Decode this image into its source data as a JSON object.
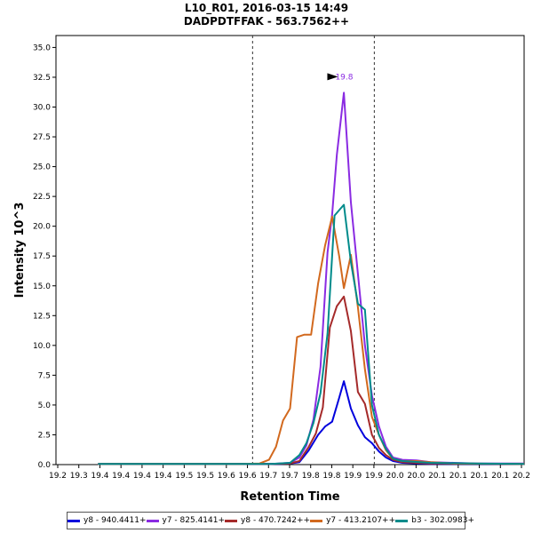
{
  "title": {
    "line1": "L10_R01, 2016-03-15 14:49",
    "line2": "DADPDTFFAK - 563.7562++"
  },
  "chart_data": {
    "type": "line",
    "xlabel": "Retention Time",
    "ylabel": "Intensity 10^3",
    "xlim": [
      19.2,
      20.2
    ],
    "ylim": [
      0,
      36
    ],
    "x_tick_labels": [
      "19.2",
      "19.3",
      "19.4",
      "19.4",
      "19.4",
      "19.4",
      "19.5",
      "19.5",
      "19.6",
      "19.6",
      "19.7",
      "19.7",
      "19.8",
      "19.8",
      "19.9",
      "19.9",
      "20.0",
      "20.0",
      "20.1",
      "20.1",
      "20.1",
      "20.1",
      "20.2"
    ],
    "y_ticks": [
      "0.0",
      "2.5",
      "5.0",
      "7.5",
      "10.0",
      "12.5",
      "15.0",
      "17.5",
      "20.0",
      "22.5",
      "25.0",
      "27.5",
      "30.0",
      "32.5",
      "35.0"
    ],
    "vlines": [
      19.62,
      19.88
    ],
    "peak_annotation": {
      "x": 19.81,
      "y": 31.2,
      "label": "19.8"
    },
    "legend_position": "bottom",
    "grid": false,
    "series": [
      {
        "name": "y8 - 940.4411+",
        "color": "#0000dd",
        "points": [
          [
            19.29,
            0.05
          ],
          [
            19.4,
            0.05
          ],
          [
            19.6,
            0.05
          ],
          [
            19.66,
            0.05
          ],
          [
            19.68,
            0.05
          ],
          [
            19.7,
            0.1
          ],
          [
            19.72,
            0.2
          ],
          [
            19.74,
            1.2
          ],
          [
            19.76,
            2.5
          ],
          [
            19.775,
            3.2
          ],
          [
            19.79,
            3.6
          ],
          [
            19.805,
            5.6
          ],
          [
            19.815,
            7.0
          ],
          [
            19.83,
            4.7
          ],
          [
            19.845,
            3.3
          ],
          [
            19.86,
            2.3
          ],
          [
            19.875,
            1.8
          ],
          [
            19.89,
            1.1
          ],
          [
            19.905,
            0.6
          ],
          [
            19.92,
            0.3
          ],
          [
            19.94,
            0.15
          ],
          [
            20.0,
            0.05
          ],
          [
            20.2,
            0.05
          ]
        ]
      },
      {
        "name": "y7 - 825.4141+",
        "color": "#8a2be2",
        "points": [
          [
            19.29,
            0.05
          ],
          [
            19.6,
            0.05
          ],
          [
            19.66,
            0.05
          ],
          [
            19.7,
            0.15
          ],
          [
            19.72,
            0.6
          ],
          [
            19.735,
            1.6
          ],
          [
            19.75,
            3.8
          ],
          [
            19.765,
            8.2
          ],
          [
            19.78,
            17.8
          ],
          [
            19.79,
            21.0
          ],
          [
            19.8,
            26.0
          ],
          [
            19.815,
            31.2
          ],
          [
            19.83,
            22.0
          ],
          [
            19.845,
            16.0
          ],
          [
            19.86,
            10.0
          ],
          [
            19.875,
            5.8
          ],
          [
            19.89,
            3.2
          ],
          [
            19.905,
            1.5
          ],
          [
            19.92,
            0.6
          ],
          [
            19.94,
            0.4
          ],
          [
            19.97,
            0.35
          ],
          [
            20.0,
            0.2
          ],
          [
            20.05,
            0.15
          ],
          [
            20.1,
            0.1
          ],
          [
            20.2,
            0.1
          ]
        ]
      },
      {
        "name": "y8 - 470.7242++",
        "color": "#a52a2a",
        "points": [
          [
            19.29,
            0.05
          ],
          [
            19.6,
            0.05
          ],
          [
            19.66,
            0.05
          ],
          [
            19.7,
            0.1
          ],
          [
            19.72,
            0.3
          ],
          [
            19.74,
            1.5
          ],
          [
            19.755,
            2.6
          ],
          [
            19.77,
            4.8
          ],
          [
            19.785,
            11.5
          ],
          [
            19.8,
            13.3
          ],
          [
            19.815,
            14.1
          ],
          [
            19.83,
            11.2
          ],
          [
            19.845,
            6.1
          ],
          [
            19.86,
            5.1
          ],
          [
            19.875,
            2.5
          ],
          [
            19.89,
            1.4
          ],
          [
            19.905,
            0.8
          ],
          [
            19.92,
            0.4
          ],
          [
            19.94,
            0.2
          ],
          [
            20.0,
            0.1
          ],
          [
            20.2,
            0.05
          ]
        ]
      },
      {
        "name": "y7 - 413.2107++",
        "color": "#d2691e",
        "points": [
          [
            19.29,
            0.05
          ],
          [
            19.6,
            0.05
          ],
          [
            19.635,
            0.1
          ],
          [
            19.655,
            0.4
          ],
          [
            19.67,
            1.5
          ],
          [
            19.685,
            3.7
          ],
          [
            19.7,
            4.7
          ],
          [
            19.715,
            10.7
          ],
          [
            19.73,
            10.9
          ],
          [
            19.745,
            10.9
          ],
          [
            19.76,
            15.2
          ],
          [
            19.775,
            18.4
          ],
          [
            19.79,
            20.8
          ],
          [
            19.805,
            17.5
          ],
          [
            19.815,
            14.8
          ],
          [
            19.83,
            17.6
          ],
          [
            19.845,
            13.2
          ],
          [
            19.86,
            8.0
          ],
          [
            19.875,
            4.0
          ],
          [
            19.89,
            2.5
          ],
          [
            19.905,
            1.2
          ],
          [
            19.92,
            0.5
          ],
          [
            19.94,
            0.3
          ],
          [
            19.97,
            0.3
          ],
          [
            20.0,
            0.2
          ],
          [
            20.05,
            0.1
          ],
          [
            20.2,
            0.05
          ]
        ]
      },
      {
        "name": "b3 - 302.0983+",
        "color": "#008b8b",
        "points": [
          [
            19.29,
            0.05
          ],
          [
            19.6,
            0.05
          ],
          [
            19.66,
            0.05
          ],
          [
            19.7,
            0.15
          ],
          [
            19.72,
            0.8
          ],
          [
            19.735,
            1.8
          ],
          [
            19.75,
            3.5
          ],
          [
            19.765,
            6.0
          ],
          [
            19.78,
            11.0
          ],
          [
            19.795,
            20.9
          ],
          [
            19.815,
            21.8
          ],
          [
            19.83,
            17.0
          ],
          [
            19.845,
            13.5
          ],
          [
            19.86,
            13.0
          ],
          [
            19.875,
            5.0
          ],
          [
            19.89,
            2.5
          ],
          [
            19.905,
            1.3
          ],
          [
            19.92,
            0.5
          ],
          [
            19.94,
            0.3
          ],
          [
            20.0,
            0.15
          ],
          [
            20.1,
            0.1
          ],
          [
            20.2,
            0.05
          ]
        ]
      }
    ]
  }
}
